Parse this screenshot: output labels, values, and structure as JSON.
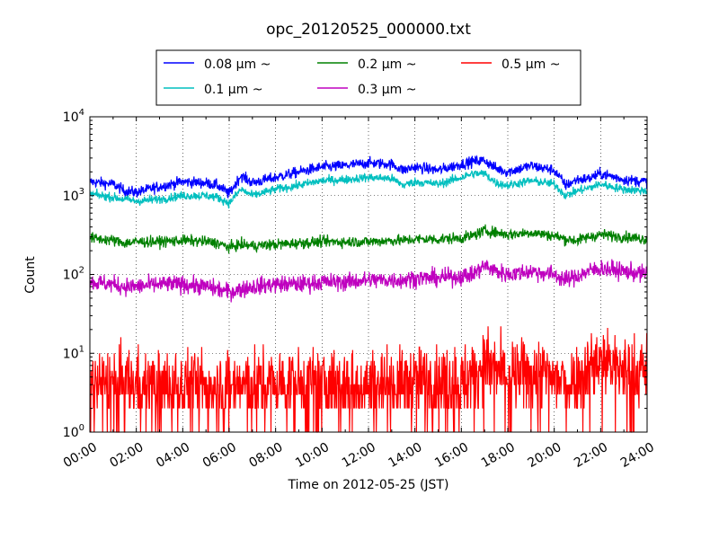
{
  "chart_data": {
    "type": "line",
    "title": "opc_20120525_000000.txt",
    "xlabel": "Time on 2012-05-25 (JST)",
    "ylabel": "Count",
    "yscale": "log",
    "ylim": [
      1,
      10000
    ],
    "xlim": [
      "00:00",
      "24:00"
    ],
    "grid": true,
    "legend_position": "above plot",
    "x_ticks": [
      "00:00",
      "02:00",
      "04:00",
      "06:00",
      "08:00",
      "10:00",
      "12:00",
      "14:00",
      "16:00",
      "18:00",
      "20:00",
      "22:00",
      "24:00"
    ],
    "y_ticks": [
      {
        "base": "10",
        "exp": "0"
      },
      {
        "base": "10",
        "exp": "1"
      },
      {
        "base": "10",
        "exp": "2"
      },
      {
        "base": "10",
        "exp": "3"
      },
      {
        "base": "10",
        "exp": "4"
      }
    ],
    "x_hours": [
      0,
      1,
      1.5,
      2,
      3,
      4,
      5,
      5.5,
      6,
      6.5,
      7,
      8,
      9,
      10,
      11,
      12,
      13,
      13.5,
      14,
      15,
      16,
      16.5,
      17,
      17.5,
      18,
      19,
      20,
      20.5,
      21,
      21.5,
      22,
      23,
      24
    ],
    "series": [
      {
        "name": "0.08 μm ~",
        "color": "#0000ff",
        "noise": 0.05,
        "values": [
          1500,
          1400,
          1150,
          1100,
          1300,
          1500,
          1450,
          1350,
          1050,
          1800,
          1450,
          1700,
          2000,
          2300,
          2400,
          2600,
          2500,
          2100,
          2300,
          2100,
          2500,
          2700,
          2800,
          2200,
          2000,
          2400,
          2100,
          1350,
          1600,
          1650,
          1900,
          1600,
          1500
        ]
      },
      {
        "name": "0.1 μm ~",
        "color": "#00bfbf",
        "noise": 0.04,
        "values": [
          1050,
          950,
          900,
          850,
          900,
          1000,
          1000,
          950,
          800,
          1200,
          1000,
          1200,
          1350,
          1550,
          1600,
          1700,
          1650,
          1350,
          1500,
          1400,
          1700,
          1900,
          1900,
          1450,
          1350,
          1550,
          1400,
          1000,
          1150,
          1250,
          1400,
          1200,
          1150
        ]
      },
      {
        "name": "0.2 μm ~",
        "color": "#008000",
        "noise": 0.05,
        "values": [
          290,
          270,
          250,
          260,
          260,
          270,
          260,
          250,
          220,
          240,
          230,
          240,
          250,
          260,
          260,
          260,
          270,
          270,
          280,
          280,
          290,
          310,
          360,
          340,
          320,
          340,
          310,
          280,
          270,
          300,
          320,
          300,
          280
        ]
      },
      {
        "name": "0.3 μm ~",
        "color": "#bf00bf",
        "noise": 0.08,
        "values": [
          80,
          75,
          70,
          70,
          75,
          75,
          70,
          65,
          60,
          65,
          70,
          75,
          75,
          80,
          80,
          85,
          85,
          85,
          90,
          90,
          95,
          100,
          130,
          110,
          100,
          110,
          100,
          85,
          95,
          110,
          120,
          110,
          100
        ]
      },
      {
        "name": "0.5 μm ~",
        "color": "#ff0000",
        "noise": 0.32,
        "values": [
          4,
          4,
          4,
          4,
          4,
          4,
          4,
          4,
          4,
          4,
          4,
          4,
          4,
          4,
          4,
          4,
          4,
          4,
          4.5,
          4.5,
          4.5,
          5,
          7.5,
          6,
          5,
          5.5,
          5,
          4,
          5,
          7,
          8.5,
          6,
          6
        ]
      }
    ]
  }
}
